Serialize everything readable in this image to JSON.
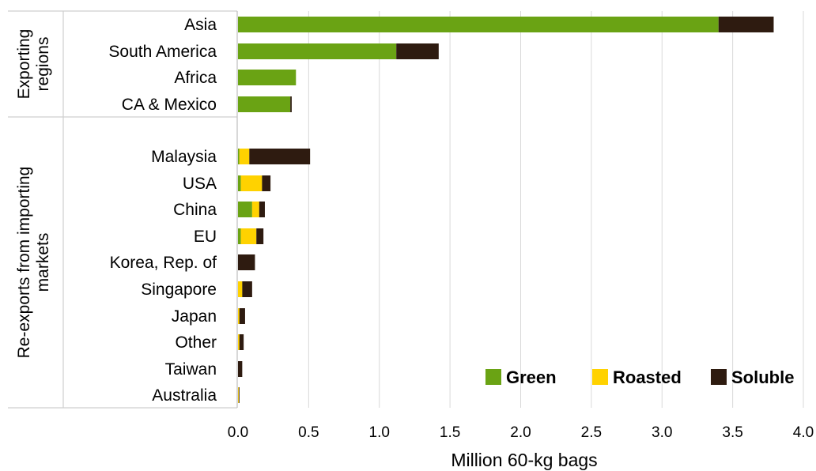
{
  "chart_data": {
    "type": "bar",
    "orientation": "horizontal",
    "stacked": true,
    "xlabel": "Million 60-kg bags",
    "xlim": [
      0,
      4.0
    ],
    "xticks": [
      "0.0",
      "0.5",
      "1.0",
      "1.5",
      "2.0",
      "2.5",
      "3.0",
      "3.5",
      "4.0"
    ],
    "grid": true,
    "legend_position": "bottom-right",
    "groups": [
      {
        "label": "Exporting regions",
        "categories": [
          "Asia",
          "South America",
          "Africa",
          "CA & Mexico"
        ],
        "series": [
          {
            "name": "Green",
            "values": [
              3.4,
              1.12,
              0.41,
              0.37
            ]
          },
          {
            "name": "Roasted",
            "values": [
              0,
              0,
              0,
              0
            ]
          },
          {
            "name": "Soluble",
            "values": [
              0.39,
              0.3,
              0,
              0.01
            ]
          }
        ]
      },
      {
        "label": "Re-exports from importing markets",
        "categories": [
          "Malaysia",
          "USA",
          "China",
          "EU",
          "Korea, Rep. of",
          "Singapore",
          "Japan",
          "Other",
          "Taiwan",
          "Australia"
        ],
        "series": [
          {
            "name": "Green",
            "values": [
              0.01,
              0.02,
              0.1,
              0.02,
              0,
              0,
              0,
              0,
              0,
              0
            ]
          },
          {
            "name": "Roasted",
            "values": [
              0.07,
              0.15,
              0.05,
              0.11,
              0,
              0.03,
              0.01,
              0.01,
              0,
              0.005
            ]
          },
          {
            "name": "Soluble",
            "values": [
              0.43,
              0.06,
              0.04,
              0.05,
              0.12,
              0.07,
              0.04,
              0.03,
              0.03,
              0.005
            ]
          }
        ]
      }
    ],
    "colors": {
      "Green": "#6aa314",
      "Roasted": "#ffd200",
      "Soluble": "#2e1b10"
    }
  }
}
